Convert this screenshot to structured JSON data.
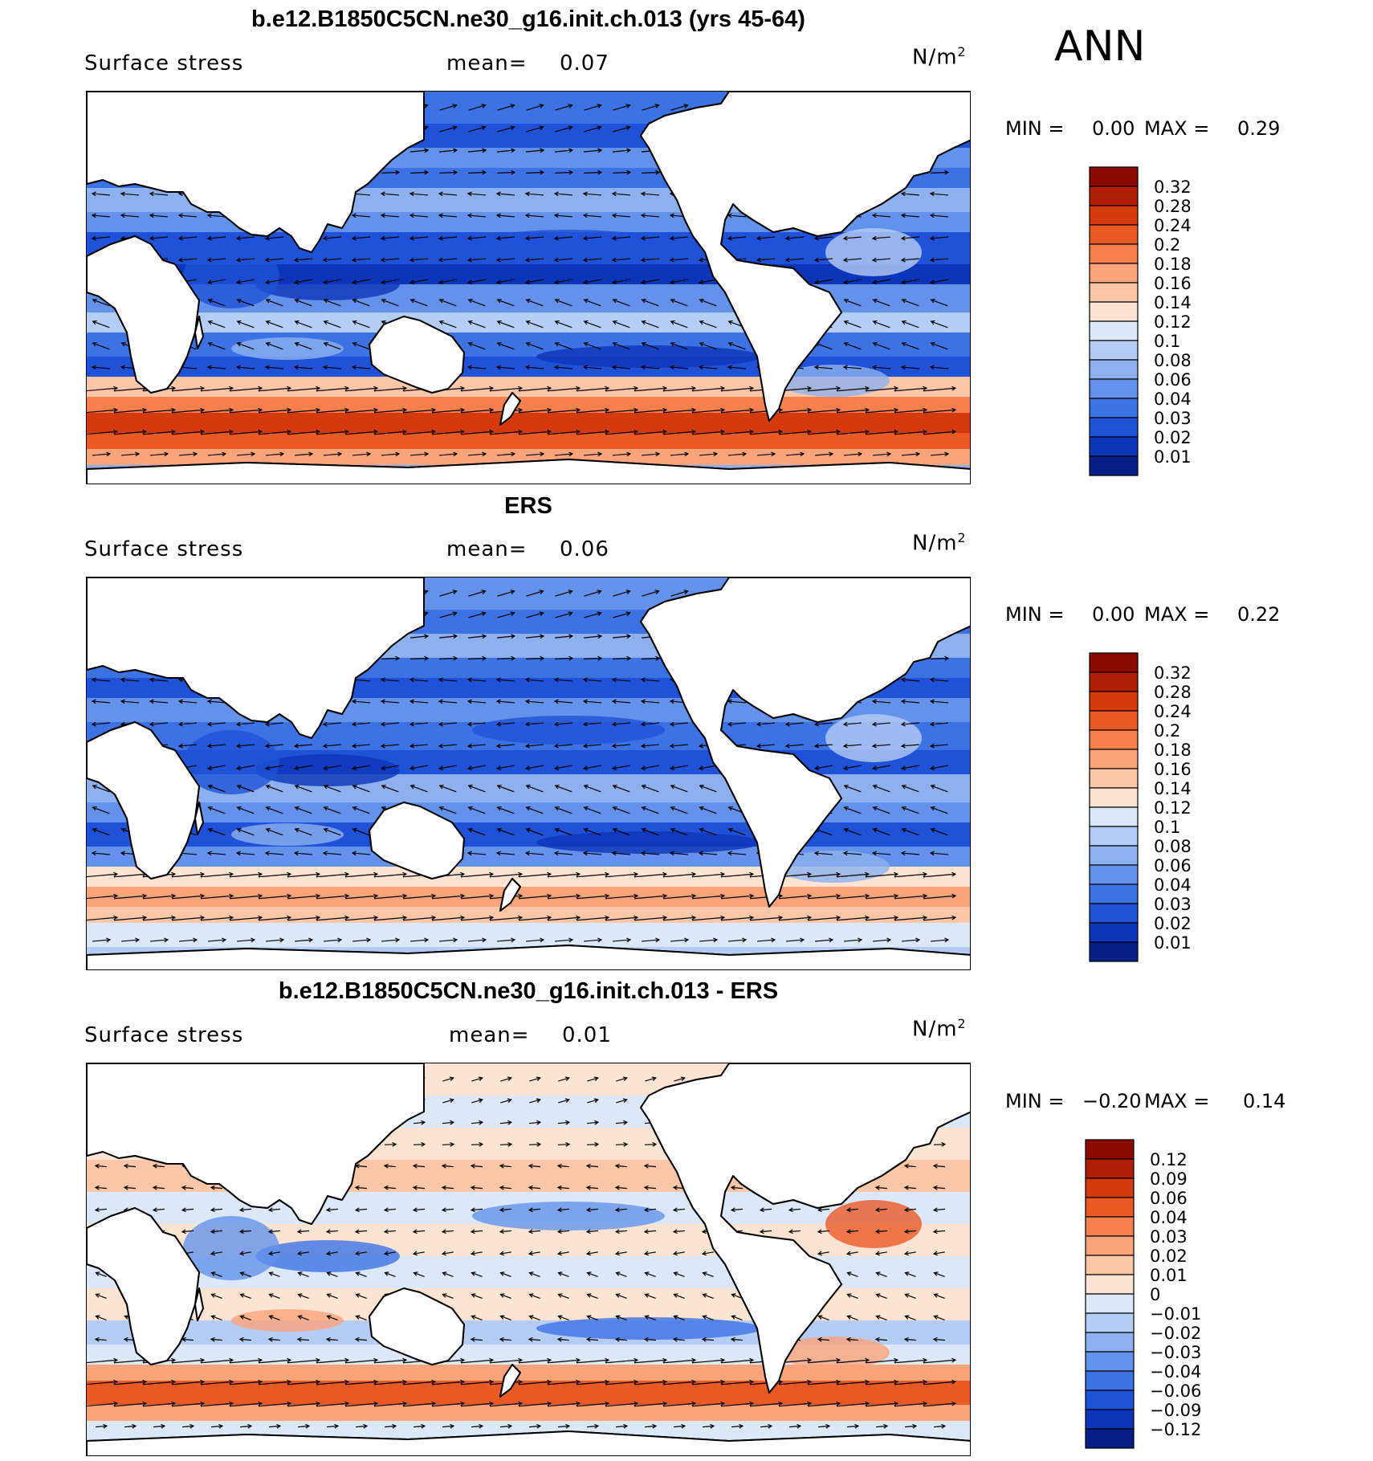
{
  "season": "ANN",
  "panels": [
    {
      "title": "b.e12.B1850C5CN.ne30_g16.init.ch.013 (yrs 45-64)",
      "variable": "Surface stress",
      "mean_label": "mean=",
      "mean_value": "0.07",
      "units_base": "N/m",
      "units_exp": "2",
      "min_label": "MIN =",
      "min_value": "0.00",
      "max_label": "MAX =",
      "max_value": "0.29",
      "colorbar_labels": [
        "0.32",
        "0.28",
        "0.24",
        "0.2",
        "0.18",
        "0.16",
        "0.14",
        "0.12",
        "0.1",
        "0.08",
        "0.06",
        "0.04",
        "0.03",
        "0.02",
        "0.01"
      ],
      "colorbar_colors": [
        "#8b0a00",
        "#b01e05",
        "#d43a0e",
        "#ea5a26",
        "#f6804e",
        "#fba37b",
        "#fdc6a6",
        "#fde4d2",
        "#dbe8fa",
        "#b5cdf5",
        "#8db1ef",
        "#6392ea",
        "#3c72e4",
        "#1f52d6",
        "#0c36b8",
        "#061e86"
      ],
      "map_style": "model"
    },
    {
      "title": "ERS",
      "variable": "Surface stress",
      "mean_label": "mean=",
      "mean_value": "0.06",
      "units_base": "N/m",
      "units_exp": "2",
      "min_label": "MIN =",
      "min_value": "0.00",
      "max_label": "MAX =",
      "max_value": "0.22",
      "colorbar_labels": [
        "0.32",
        "0.28",
        "0.24",
        "0.2",
        "0.18",
        "0.16",
        "0.14",
        "0.12",
        "0.1",
        "0.08",
        "0.06",
        "0.04",
        "0.03",
        "0.02",
        "0.01"
      ],
      "colorbar_colors": [
        "#8b0a00",
        "#b01e05",
        "#d43a0e",
        "#ea5a26",
        "#f6804e",
        "#fba37b",
        "#fdc6a6",
        "#fde4d2",
        "#dbe8fa",
        "#b5cdf5",
        "#8db1ef",
        "#6392ea",
        "#3c72e4",
        "#1f52d6",
        "#0c36b8",
        "#061e86"
      ],
      "map_style": "obs"
    },
    {
      "title": "b.e12.B1850C5CN.ne30_g16.init.ch.013 - ERS",
      "variable": "Surface stress",
      "mean_label": "mean=",
      "mean_value": "0.01",
      "units_base": "N/m",
      "units_exp": "2",
      "min_label": "MIN =",
      "min_value": "−0.20",
      "max_label": "MAX =",
      "max_value": "0.14",
      "colorbar_labels": [
        "0.12",
        "0.09",
        "0.06",
        "0.04",
        "0.03",
        "0.02",
        "0.01",
        "0",
        "−0.01",
        "−0.02",
        "−0.03",
        "−0.04",
        "−0.06",
        "−0.09",
        "−0.12"
      ],
      "colorbar_colors": [
        "#8b0a00",
        "#b01e05",
        "#d43a0e",
        "#ea5a26",
        "#f6804e",
        "#fba37b",
        "#fdc6a6",
        "#fde4d2",
        "#dbe8fa",
        "#b5cdf5",
        "#8db1ef",
        "#6392ea",
        "#3c72e4",
        "#1f52d6",
        "#0c36b8",
        "#061e86"
      ],
      "map_style": "diff"
    }
  ]
}
